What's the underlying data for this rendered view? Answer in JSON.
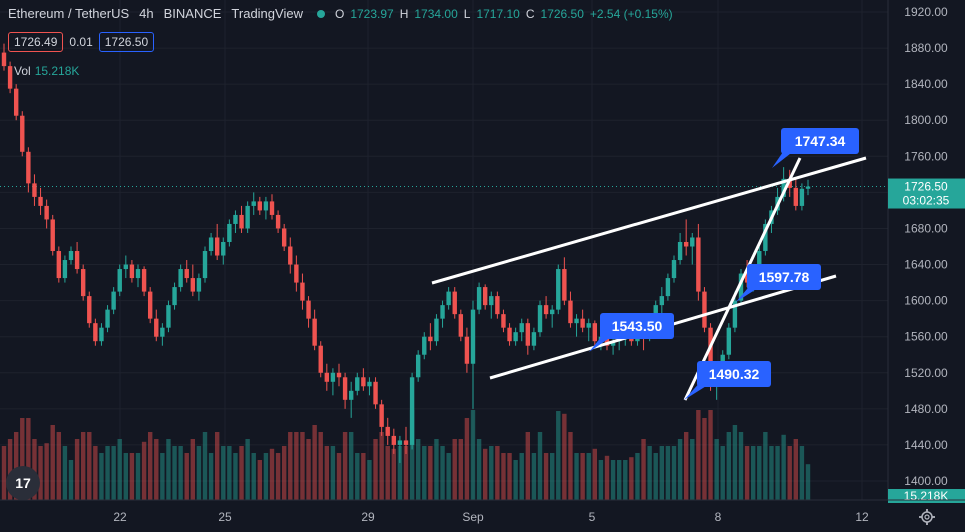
{
  "header": {
    "symbol": "Ethereum / TetherUS",
    "interval": "4h",
    "exchange": "BINANCE",
    "source": "TradingView",
    "open_label": "O",
    "open": "1723.97",
    "high_label": "H",
    "high": "1734.00",
    "low_label": "L",
    "low": "1717.10",
    "close_label": "C",
    "close": "1726.50",
    "change": "+2.54 (+0.15%)"
  },
  "trade": {
    "sell": "1726.49",
    "spread": "0.01",
    "buy": "1726.50"
  },
  "volume": {
    "label": "Vol",
    "value": "15.218K"
  },
  "price_axis": {
    "ticks": [
      "1920.00",
      "1880.00",
      "1840.00",
      "1800.00",
      "1760.00",
      "1720.00",
      "1680.00",
      "1640.00",
      "1600.00",
      "1560.00",
      "1520.00",
      "1480.00",
      "1440.00",
      "1400.00"
    ],
    "last_price": "1726.50",
    "countdown": "03:02:35",
    "volume_badge": "15.218K"
  },
  "time_axis": {
    "ticks": [
      "22",
      "25",
      "29",
      "Sep",
      "5",
      "8",
      "12"
    ]
  },
  "annotations": [
    "1747.34",
    "1597.78",
    "1543.50",
    "1490.32"
  ],
  "logo": "17",
  "colors": {
    "bg": "#131722",
    "up": "#26a69a",
    "down": "#ef5350",
    "label": "#2962ff"
  },
  "chart_data": {
    "type": "candlestick",
    "ylim": [
      1390,
      1930
    ],
    "y_ticks": [
      1920,
      1880,
      1840,
      1800,
      1760,
      1720,
      1680,
      1640,
      1600,
      1560,
      1520,
      1480,
      1440,
      1400
    ],
    "x_ticks": [
      "22",
      "25",
      "29",
      "Sep",
      "5",
      "8",
      "12"
    ],
    "last_price": 1726.5,
    "annotations": [
      {
        "text": "1747.34",
        "value": 1747.34
      },
      {
        "text": "1597.78",
        "value": 1597.78
      },
      {
        "text": "1543.50",
        "value": 1543.5
      },
      {
        "text": "1490.32",
        "value": 1490.32
      }
    ],
    "candles": [
      [
        1875,
        1885,
        1855,
        1860
      ],
      [
        1860,
        1865,
        1830,
        1835
      ],
      [
        1835,
        1840,
        1800,
        1805
      ],
      [
        1805,
        1810,
        1760,
        1765
      ],
      [
        1765,
        1770,
        1720,
        1730
      ],
      [
        1730,
        1740,
        1705,
        1715
      ],
      [
        1715,
        1725,
        1695,
        1705
      ],
      [
        1705,
        1712,
        1680,
        1690
      ],
      [
        1690,
        1695,
        1650,
        1655
      ],
      [
        1655,
        1660,
        1620,
        1625
      ],
      [
        1625,
        1650,
        1620,
        1645
      ],
      [
        1645,
        1660,
        1640,
        1655
      ],
      [
        1655,
        1665,
        1630,
        1635
      ],
      [
        1635,
        1640,
        1600,
        1605
      ],
      [
        1605,
        1610,
        1570,
        1575
      ],
      [
        1575,
        1580,
        1550,
        1555
      ],
      [
        1555,
        1575,
        1550,
        1570
      ],
      [
        1570,
        1595,
        1565,
        1590
      ],
      [
        1590,
        1615,
        1585,
        1610
      ],
      [
        1610,
        1640,
        1605,
        1635
      ],
      [
        1635,
        1650,
        1625,
        1640
      ],
      [
        1640,
        1645,
        1620,
        1625
      ],
      [
        1625,
        1640,
        1615,
        1635
      ],
      [
        1635,
        1638,
        1605,
        1610
      ],
      [
        1610,
        1615,
        1575,
        1580
      ],
      [
        1580,
        1590,
        1555,
        1560
      ],
      [
        1560,
        1575,
        1550,
        1570
      ],
      [
        1570,
        1600,
        1565,
        1595
      ],
      [
        1595,
        1620,
        1590,
        1615
      ],
      [
        1615,
        1640,
        1610,
        1635
      ],
      [
        1635,
        1645,
        1620,
        1625
      ],
      [
        1625,
        1640,
        1605,
        1610
      ],
      [
        1610,
        1630,
        1600,
        1625
      ],
      [
        1625,
        1660,
        1620,
        1655
      ],
      [
        1655,
        1675,
        1650,
        1670
      ],
      [
        1670,
        1685,
        1645,
        1650
      ],
      [
        1650,
        1670,
        1640,
        1665
      ],
      [
        1665,
        1690,
        1660,
        1685
      ],
      [
        1685,
        1700,
        1675,
        1695
      ],
      [
        1695,
        1705,
        1675,
        1680
      ],
      [
        1680,
        1710,
        1675,
        1705
      ],
      [
        1705,
        1720,
        1695,
        1710
      ],
      [
        1710,
        1715,
        1695,
        1700
      ],
      [
        1700,
        1715,
        1690,
        1710
      ],
      [
        1710,
        1718,
        1690,
        1695
      ],
      [
        1695,
        1700,
        1675,
        1680
      ],
      [
        1680,
        1685,
        1655,
        1660
      ],
      [
        1660,
        1670,
        1630,
        1640
      ],
      [
        1640,
        1650,
        1610,
        1620
      ],
      [
        1620,
        1630,
        1590,
        1600
      ],
      [
        1600,
        1605,
        1570,
        1580
      ],
      [
        1580,
        1590,
        1545,
        1550
      ],
      [
        1550,
        1555,
        1515,
        1520
      ],
      [
        1520,
        1530,
        1500,
        1510
      ],
      [
        1510,
        1525,
        1495,
        1520
      ],
      [
        1520,
        1530,
        1505,
        1515
      ],
      [
        1515,
        1520,
        1480,
        1490
      ],
      [
        1490,
        1510,
        1470,
        1500
      ],
      [
        1500,
        1520,
        1495,
        1515
      ],
      [
        1515,
        1525,
        1500,
        1505
      ],
      [
        1505,
        1515,
        1495,
        1510
      ],
      [
        1510,
        1515,
        1480,
        1485
      ],
      [
        1485,
        1490,
        1450,
        1460
      ],
      [
        1460,
        1470,
        1440,
        1450
      ],
      [
        1450,
        1458,
        1430,
        1440
      ],
      [
        1440,
        1450,
        1420,
        1445
      ],
      [
        1445,
        1460,
        1430,
        1440
      ],
      [
        1440,
        1520,
        1435,
        1515
      ],
      [
        1515,
        1545,
        1510,
        1540
      ],
      [
        1540,
        1565,
        1535,
        1560
      ],
      [
        1560,
        1575,
        1545,
        1555
      ],
      [
        1555,
        1585,
        1550,
        1580
      ],
      [
        1580,
        1600,
        1570,
        1595
      ],
      [
        1595,
        1615,
        1590,
        1610
      ],
      [
        1610,
        1615,
        1580,
        1585
      ],
      [
        1585,
        1590,
        1555,
        1560
      ],
      [
        1560,
        1570,
        1520,
        1530
      ],
      [
        1530,
        1600,
        1480,
        1590
      ],
      [
        1590,
        1620,
        1585,
        1615
      ],
      [
        1615,
        1618,
        1590,
        1595
      ],
      [
        1595,
        1610,
        1580,
        1605
      ],
      [
        1605,
        1610,
        1580,
        1585
      ],
      [
        1585,
        1590,
        1565,
        1570
      ],
      [
        1570,
        1575,
        1550,
        1555
      ],
      [
        1555,
        1570,
        1550,
        1565
      ],
      [
        1565,
        1580,
        1555,
        1575
      ],
      [
        1575,
        1580,
        1540,
        1550
      ],
      [
        1550,
        1570,
        1545,
        1565
      ],
      [
        1565,
        1600,
        1560,
        1595
      ],
      [
        1595,
        1605,
        1580,
        1585
      ],
      [
        1585,
        1595,
        1570,
        1590
      ],
      [
        1590,
        1640,
        1585,
        1635
      ],
      [
        1635,
        1648,
        1595,
        1600
      ],
      [
        1600,
        1610,
        1570,
        1575
      ],
      [
        1575,
        1585,
        1560,
        1580
      ],
      [
        1580,
        1590,
        1565,
        1570
      ],
      [
        1570,
        1580,
        1555,
        1575
      ],
      [
        1575,
        1578,
        1550,
        1555
      ],
      [
        1555,
        1565,
        1545,
        1560
      ],
      [
        1560,
        1568,
        1545,
        1550
      ],
      [
        1550,
        1560,
        1540,
        1555
      ],
      [
        1555,
        1565,
        1545,
        1560
      ],
      [
        1560,
        1570,
        1550,
        1565
      ],
      [
        1565,
        1572,
        1550,
        1555
      ],
      [
        1555,
        1575,
        1550,
        1570
      ],
      [
        1570,
        1580,
        1545,
        1560
      ],
      [
        1560,
        1585,
        1555,
        1580
      ],
      [
        1580,
        1600,
        1575,
        1595
      ],
      [
        1595,
        1615,
        1585,
        1605
      ],
      [
        1605,
        1630,
        1600,
        1625
      ],
      [
        1625,
        1650,
        1620,
        1645
      ],
      [
        1645,
        1675,
        1640,
        1665
      ],
      [
        1665,
        1690,
        1650,
        1660
      ],
      [
        1660,
        1675,
        1640,
        1670
      ],
      [
        1670,
        1685,
        1600,
        1610
      ],
      [
        1610,
        1615,
        1565,
        1570
      ],
      [
        1570,
        1575,
        1500,
        1510
      ],
      [
        1510,
        1525,
        1490,
        1520
      ],
      [
        1520,
        1545,
        1515,
        1540
      ],
      [
        1540,
        1575,
        1535,
        1570
      ],
      [
        1570,
        1610,
        1565,
        1600
      ],
      [
        1600,
        1635,
        1595,
        1630
      ],
      [
        1630,
        1645,
        1615,
        1620
      ],
      [
        1620,
        1640,
        1610,
        1635
      ],
      [
        1635,
        1660,
        1630,
        1655
      ],
      [
        1655,
        1690,
        1650,
        1685
      ],
      [
        1685,
        1705,
        1675,
        1700
      ],
      [
        1700,
        1725,
        1695,
        1715
      ],
      [
        1715,
        1748,
        1710,
        1735
      ],
      [
        1735,
        1745,
        1715,
        1725
      ],
      [
        1725,
        1735,
        1700,
        1705
      ],
      [
        1705,
        1730,
        1700,
        1724
      ],
      [
        1724,
        1734,
        1717,
        1726.5
      ]
    ]
  }
}
